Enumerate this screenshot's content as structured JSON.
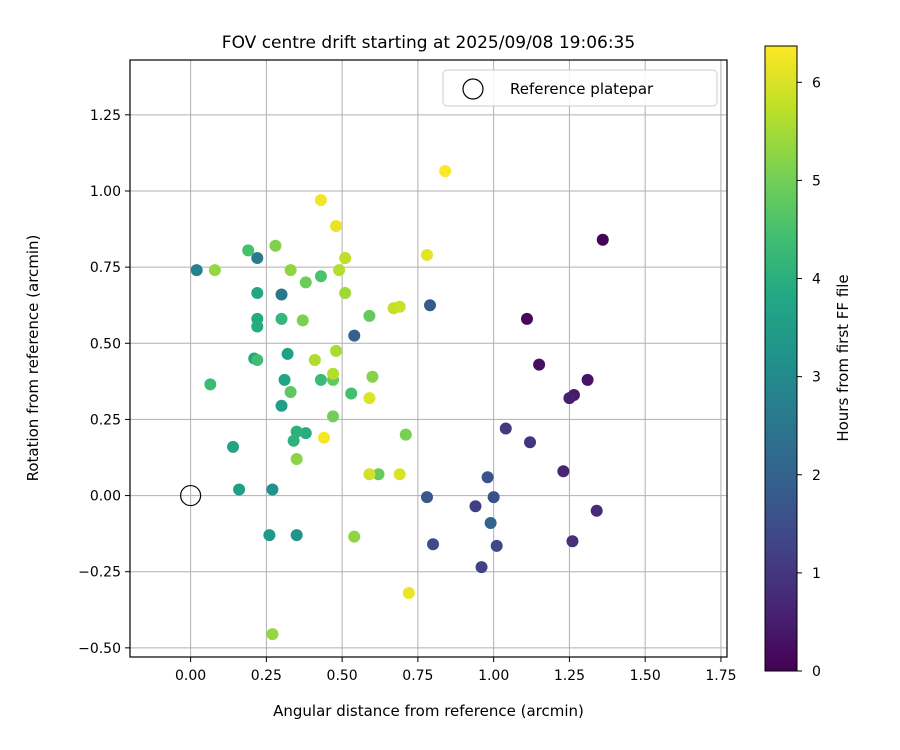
{
  "chart_data": {
    "type": "scatter",
    "title": "FOV centre drift starting at 2025/09/08 19:06:35",
    "xlabel": "Angular distance from reference (arcmin)",
    "ylabel": "Rotation from reference (arcmin)",
    "xlim": [
      -0.2,
      1.77
    ],
    "ylim": [
      -0.53,
      1.43
    ],
    "xticks": [
      0.0,
      0.25,
      0.5,
      0.75,
      1.0,
      1.25,
      1.5,
      1.75
    ],
    "xtick_labels": [
      "0.00",
      "0.25",
      "0.50",
      "0.75",
      "1.00",
      "1.25",
      "1.50",
      "1.75"
    ],
    "yticks": [
      -0.5,
      -0.25,
      0.0,
      0.25,
      0.5,
      0.75,
      1.0,
      1.25
    ],
    "ytick_labels": [
      "−0.50",
      "−0.25",
      "0.00",
      "0.25",
      "0.50",
      "0.75",
      "1.00",
      "1.25"
    ],
    "grid": true,
    "legend": {
      "position": "top-right",
      "entries": [
        {
          "label": "Reference platepar",
          "marker": "open-circle",
          "x": 0.0,
          "y": 0.0
        }
      ]
    },
    "colorbar": {
      "label": "Hours from first FF file",
      "colormap": "viridis",
      "range": [
        0,
        6.37
      ],
      "ticks": [
        0,
        1,
        2,
        3,
        4,
        5,
        6
      ],
      "tick_labels": [
        "0",
        "1",
        "2",
        "3",
        "4",
        "5",
        "6"
      ]
    },
    "points": [
      {
        "x": 1.36,
        "y": 0.84,
        "c": 0.05
      },
      {
        "x": 1.11,
        "y": 0.58,
        "c": 0.15
      },
      {
        "x": 1.15,
        "y": 0.43,
        "c": 0.25
      },
      {
        "x": 1.31,
        "y": 0.38,
        "c": 0.35
      },
      {
        "x": 1.265,
        "y": 0.33,
        "c": 0.45
      },
      {
        "x": 1.25,
        "y": 0.32,
        "c": 0.55
      },
      {
        "x": 1.23,
        "y": 0.08,
        "c": 0.65
      },
      {
        "x": 1.34,
        "y": -0.05,
        "c": 0.75
      },
      {
        "x": 1.26,
        "y": -0.15,
        "c": 0.85
      },
      {
        "x": 1.12,
        "y": 0.175,
        "c": 0.95
      },
      {
        "x": 1.04,
        "y": 0.22,
        "c": 1.05
      },
      {
        "x": 0.94,
        "y": -0.035,
        "c": 1.15
      },
      {
        "x": 0.96,
        "y": -0.235,
        "c": 1.25
      },
      {
        "x": 1.01,
        "y": -0.165,
        "c": 1.35
      },
      {
        "x": 0.8,
        "y": -0.16,
        "c": 1.45
      },
      {
        "x": 1.0,
        "y": -0.005,
        "c": 1.55
      },
      {
        "x": 0.98,
        "y": 0.06,
        "c": 1.65
      },
      {
        "x": 0.78,
        "y": -0.005,
        "c": 1.75
      },
      {
        "x": 0.79,
        "y": 0.625,
        "c": 1.85
      },
      {
        "x": 0.54,
        "y": 0.525,
        "c": 1.95
      },
      {
        "x": 0.99,
        "y": -0.09,
        "c": 2.05
      },
      {
        "x": 0.3,
        "y": 0.66,
        "c": 2.55
      },
      {
        "x": 0.22,
        "y": 0.78,
        "c": 2.65
      },
      {
        "x": 0.02,
        "y": 0.74,
        "c": 2.75
      },
      {
        "x": 0.27,
        "y": 0.02,
        "c": 3.25
      },
      {
        "x": 0.35,
        "y": -0.13,
        "c": 3.3
      },
      {
        "x": 0.26,
        "y": -0.13,
        "c": 3.35
      },
      {
        "x": 0.16,
        "y": 0.02,
        "c": 3.55
      },
      {
        "x": 0.14,
        "y": 0.16,
        "c": 3.65
      },
      {
        "x": 0.3,
        "y": 0.295,
        "c": 3.6
      },
      {
        "x": 0.32,
        "y": 0.465,
        "c": 3.6
      },
      {
        "x": 0.31,
        "y": 0.38,
        "c": 3.7
      },
      {
        "x": 0.21,
        "y": 0.45,
        "c": 3.75
      },
      {
        "x": 0.22,
        "y": 0.665,
        "c": 3.8
      },
      {
        "x": 0.22,
        "y": 0.58,
        "c": 3.85
      },
      {
        "x": 0.22,
        "y": 0.555,
        "c": 3.9
      },
      {
        "x": 0.38,
        "y": 0.205,
        "c": 3.95
      },
      {
        "x": 0.35,
        "y": 0.21,
        "c": 4.05
      },
      {
        "x": 0.34,
        "y": 0.18,
        "c": 4.1
      },
      {
        "x": 0.3,
        "y": 0.58,
        "c": 4.2
      },
      {
        "x": 0.43,
        "y": 0.38,
        "c": 4.3
      },
      {
        "x": 0.065,
        "y": 0.365,
        "c": 4.35
      },
      {
        "x": 0.22,
        "y": 0.445,
        "c": 4.4
      },
      {
        "x": 0.53,
        "y": 0.335,
        "c": 4.45
      },
      {
        "x": 0.19,
        "y": 0.805,
        "c": 4.5
      },
      {
        "x": 0.43,
        "y": 0.72,
        "c": 4.55
      },
      {
        "x": 0.33,
        "y": 0.34,
        "c": 4.75
      },
      {
        "x": 0.47,
        "y": 0.38,
        "c": 4.8
      },
      {
        "x": 0.59,
        "y": 0.59,
        "c": 4.85
      },
      {
        "x": 0.62,
        "y": 0.07,
        "c": 4.9
      },
      {
        "x": 0.38,
        "y": 0.7,
        "c": 4.95
      },
      {
        "x": 0.47,
        "y": 0.26,
        "c": 5.0
      },
      {
        "x": 0.71,
        "y": 0.2,
        "c": 5.05
      },
      {
        "x": 0.37,
        "y": 0.575,
        "c": 5.1
      },
      {
        "x": 0.28,
        "y": 0.82,
        "c": 5.15
      },
      {
        "x": 0.6,
        "y": 0.39,
        "c": 5.2
      },
      {
        "x": 0.35,
        "y": 0.12,
        "c": 5.25
      },
      {
        "x": 0.54,
        "y": -0.135,
        "c": 5.3
      },
      {
        "x": 0.27,
        "y": -0.455,
        "c": 5.35
      },
      {
        "x": 0.33,
        "y": 0.74,
        "c": 5.3
      },
      {
        "x": 0.08,
        "y": 0.74,
        "c": 5.35
      },
      {
        "x": 0.51,
        "y": 0.665,
        "c": 5.45
      },
      {
        "x": 0.48,
        "y": 0.475,
        "c": 5.55
      },
      {
        "x": 0.41,
        "y": 0.445,
        "c": 5.6
      },
      {
        "x": 0.47,
        "y": 0.4,
        "c": 5.65
      },
      {
        "x": 0.49,
        "y": 0.74,
        "c": 5.65
      },
      {
        "x": 0.51,
        "y": 0.78,
        "c": 5.75
      },
      {
        "x": 0.67,
        "y": 0.615,
        "c": 5.8
      },
      {
        "x": 0.69,
        "y": 0.62,
        "c": 5.85
      },
      {
        "x": 0.59,
        "y": 0.07,
        "c": 5.95
      },
      {
        "x": 0.69,
        "y": 0.07,
        "c": 6.0
      },
      {
        "x": 0.59,
        "y": 0.32,
        "c": 6.05
      },
      {
        "x": 0.78,
        "y": 0.79,
        "c": 6.1
      },
      {
        "x": 0.48,
        "y": 0.885,
        "c": 6.15
      },
      {
        "x": 0.72,
        "y": -0.32,
        "c": 6.2
      },
      {
        "x": 0.43,
        "y": 0.97,
        "c": 6.25
      },
      {
        "x": 0.44,
        "y": 0.19,
        "c": 6.3
      },
      {
        "x": 0.84,
        "y": 1.065,
        "c": 6.35
      }
    ]
  }
}
